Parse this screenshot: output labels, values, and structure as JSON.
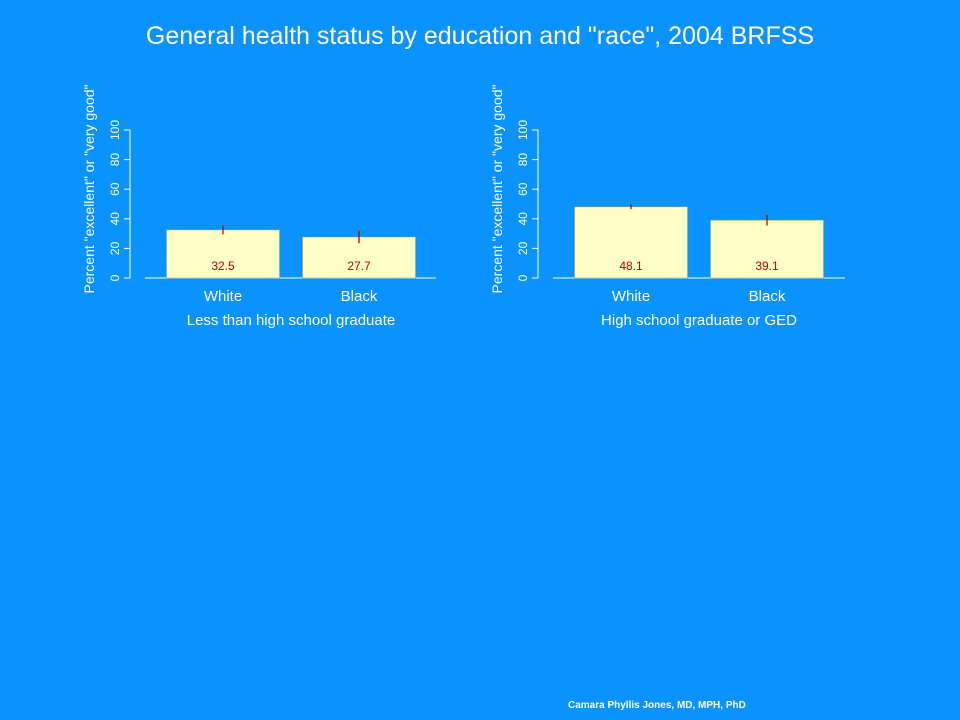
{
  "title": "General health status by education and \"race\", 2004 BRFSS",
  "footer": "Camara Phyllis Jones, MD, MPH, PhD",
  "colors": {
    "background": "#0a93fc",
    "bar": "#ffffc8",
    "error_bar": "#c00000",
    "value_label": "#c00000",
    "axis": "#ffffff"
  },
  "chart_data": [
    {
      "type": "bar",
      "title": "",
      "xlabel": "Less than high school graduate",
      "ylabel": "Percent \"excellent\" or \"very good\"",
      "ylim": [
        0,
        100
      ],
      "yticks": [
        0,
        20,
        40,
        60,
        80,
        100
      ],
      "categories": [
        "White",
        "Black"
      ],
      "values": [
        32.5,
        27.7
      ],
      "value_labels": [
        "32.5",
        "27.7"
      ],
      "error_low": [
        29.5,
        23.5
      ],
      "error_high": [
        35.5,
        32.0
      ]
    },
    {
      "type": "bar",
      "title": "",
      "xlabel": "High school graduate or GED",
      "ylabel": "Percent \"excellent\" or \"very good\"",
      "ylim": [
        0,
        100
      ],
      "yticks": [
        0,
        20,
        40,
        60,
        80,
        100
      ],
      "categories": [
        "White",
        "Black"
      ],
      "values": [
        48.1,
        39.1
      ],
      "value_labels": [
        "48.1",
        "39.1"
      ],
      "error_low": [
        46.5,
        35.5
      ],
      "error_high": [
        49.7,
        42.7
      ]
    }
  ]
}
